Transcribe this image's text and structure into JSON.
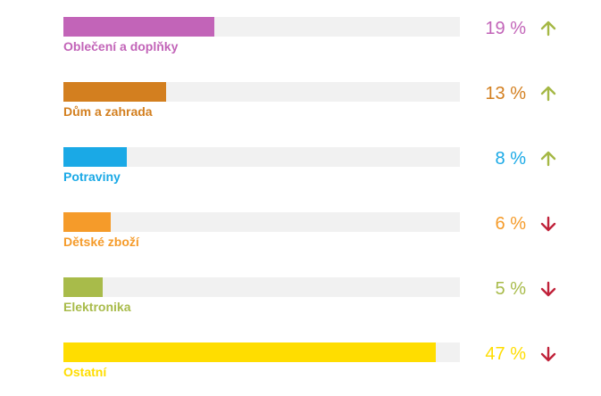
{
  "chart_data": {
    "type": "bar",
    "orientation": "horizontal",
    "grid": false,
    "categories": [
      "Oblečení a doplňky",
      "Dům a zahrada",
      "Potraviny",
      "Dětské zboží",
      "Elektronika",
      "Ostatní"
    ],
    "values": [
      19,
      13,
      8,
      6,
      5,
      47
    ],
    "value_labels": [
      "19 %",
      "13 %",
      "8 %",
      "6 %",
      "5 %",
      "47 %"
    ],
    "trends": [
      "up",
      "up",
      "up",
      "down",
      "down",
      "down"
    ],
    "colors": [
      "#c264b8",
      "#d37f1f",
      "#1aa9e6",
      "#f59b2a",
      "#a8bb4a",
      "#ffdd00"
    ],
    "trend_colors": {
      "up": "#a5b845",
      "down": "#c0223a"
    },
    "track_color": "#f1f1f1",
    "xlim": [
      0,
      50
    ]
  }
}
